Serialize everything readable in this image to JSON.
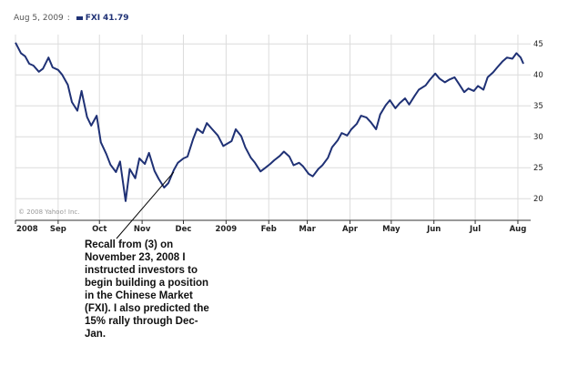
{
  "header": {
    "date": "Aug 5, 2009",
    "separator": ":",
    "ticker": "FXI",
    "last_value": "41.79"
  },
  "copyright": "© 2008 Yahoo! Inc.",
  "annotation": "Recall from (3) on November 23, 2008 I instructed investors to begin building a position in the Chinese Market (FXI). I also predicted the 15% rally through Dec-Jan.",
  "colors": {
    "line": "#1f3175",
    "grid": "#dcdcdc",
    "axis": "#333333",
    "pointer": "#000000"
  },
  "chart_data": {
    "type": "line",
    "x_tick_labels": [
      "2008",
      "Sep",
      "Oct",
      "Nov",
      "Dec",
      "2009",
      "Feb",
      "Mar",
      "Apr",
      "May",
      "Jun",
      "Jul",
      "Aug"
    ],
    "y_tick_labels": [
      "45",
      "40",
      "35",
      "30",
      "25",
      "20"
    ],
    "y_ticks": [
      45,
      40,
      35,
      30,
      25,
      20
    ],
    "ylim": [
      16.5,
      46.5
    ],
    "grid": true,
    "series": [
      {
        "name": "FXI",
        "x": [
          "2008-08-01",
          "2008-08-05",
          "2008-08-08",
          "2008-08-11",
          "2008-08-14",
          "2008-08-18",
          "2008-08-21",
          "2008-08-25",
          "2008-08-28",
          "2008-09-01",
          "2008-09-04",
          "2008-09-08",
          "2008-09-11",
          "2008-09-15",
          "2008-09-18",
          "2008-09-22",
          "2008-09-25",
          "2008-09-29",
          "2008-10-02",
          "2008-10-06",
          "2008-10-09",
          "2008-10-13",
          "2008-10-16",
          "2008-10-20",
          "2008-10-23",
          "2008-10-27",
          "2008-10-30",
          "2008-11-03",
          "2008-11-06",
          "2008-11-10",
          "2008-11-13",
          "2008-11-17",
          "2008-11-20",
          "2008-11-24",
          "2008-11-27",
          "2008-12-01",
          "2008-12-04",
          "2008-12-08",
          "2008-12-11",
          "2008-12-15",
          "2008-12-18",
          "2008-12-22",
          "2008-12-26",
          "2008-12-30",
          "2009-01-05",
          "2009-01-08",
          "2009-01-12",
          "2009-01-15",
          "2009-01-19",
          "2009-01-22",
          "2009-01-26",
          "2009-01-29",
          "2009-02-02",
          "2009-02-05",
          "2009-02-09",
          "2009-02-12",
          "2009-02-16",
          "2009-02-19",
          "2009-02-23",
          "2009-02-26",
          "2009-03-02",
          "2009-03-05",
          "2009-03-09",
          "2009-03-12",
          "2009-03-16",
          "2009-03-19",
          "2009-03-23",
          "2009-03-26",
          "2009-03-30",
          "2009-04-02",
          "2009-04-06",
          "2009-04-09",
          "2009-04-13",
          "2009-04-16",
          "2009-04-20",
          "2009-04-23",
          "2009-04-27",
          "2009-04-30",
          "2009-05-04",
          "2009-05-07",
          "2009-05-11",
          "2009-05-14",
          "2009-05-18",
          "2009-05-21",
          "2009-05-26",
          "2009-05-29",
          "2009-06-02",
          "2009-06-05",
          "2009-06-09",
          "2009-06-12",
          "2009-06-16",
          "2009-06-19",
          "2009-06-23",
          "2009-06-26",
          "2009-06-30",
          "2009-07-03",
          "2009-07-07",
          "2009-07-10",
          "2009-07-14",
          "2009-07-17",
          "2009-07-21",
          "2009-07-24",
          "2009-07-28",
          "2009-07-31",
          "2009-08-03",
          "2009-08-05"
        ],
        "values": [
          45.2,
          43.5,
          43.0,
          41.8,
          41.5,
          40.5,
          41.0,
          42.8,
          41.2,
          40.8,
          40.0,
          38.4,
          35.6,
          34.2,
          37.4,
          33.2,
          31.8,
          33.4,
          29.1,
          27.2,
          25.5,
          24.3,
          26.0,
          19.6,
          24.8,
          23.3,
          26.5,
          25.6,
          27.4,
          24.5,
          23.2,
          21.8,
          22.5,
          24.6,
          25.8,
          26.5,
          26.8,
          29.6,
          31.3,
          30.6,
          32.2,
          31.2,
          30.2,
          28.5,
          29.3,
          31.2,
          30.1,
          28.3,
          26.6,
          25.8,
          24.4,
          24.9,
          25.6,
          26.2,
          26.9,
          27.6,
          26.8,
          25.4,
          25.8,
          25.2,
          24.0,
          23.6,
          24.8,
          25.4,
          26.6,
          28.3,
          29.4,
          30.6,
          30.2,
          31.2,
          32.1,
          33.4,
          33.1,
          32.4,
          31.2,
          33.6,
          35.1,
          35.9,
          34.6,
          35.4,
          36.2,
          35.2,
          36.6,
          37.6,
          38.3,
          39.2,
          40.2,
          39.4,
          38.8,
          39.2,
          39.6,
          38.6,
          37.2,
          37.8,
          37.4,
          38.2,
          37.6,
          39.6,
          40.4,
          41.2,
          42.2,
          42.8,
          42.6,
          43.5,
          42.8,
          41.79
        ]
      }
    ]
  }
}
